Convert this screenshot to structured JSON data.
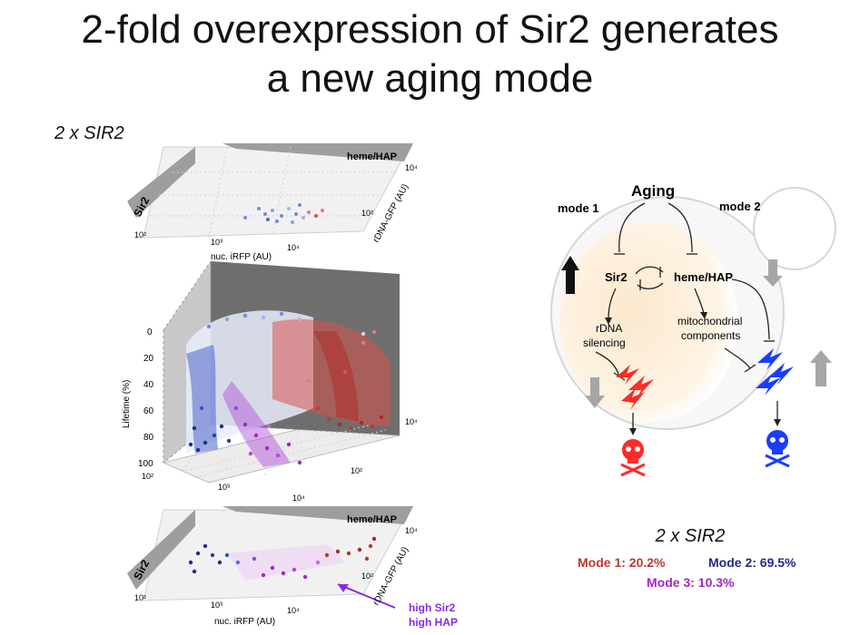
{
  "slide": {
    "title_line1": "2-fold overexpression of Sir2 generates",
    "title_line2": "a new aging mode",
    "left_label": "2 x SIR2"
  },
  "top_plot": {
    "axis_z_label": "Sir2",
    "axis_depth_label": "heme/HAP",
    "x_label": "nuc. iRFP (AU)",
    "y_label": "rDNA-GFP (AU)",
    "x_ticks": [
      "10²",
      "10³",
      "10⁴"
    ],
    "y_ticks": [
      "10²",
      "10⁴"
    ]
  },
  "main_plot": {
    "z_label": "Lifetime (%)",
    "z_ticks": [
      "0",
      "20",
      "40",
      "60",
      "80",
      "100"
    ],
    "x_ticks": [
      "10²",
      "10³",
      "10⁴"
    ],
    "y_ticks": [
      "10²",
      "10⁴"
    ]
  },
  "bottom_plot": {
    "axis_z_label": "Sir2",
    "axis_depth_label": "heme/HAP",
    "x_label": "nuc. iRFP (AU)",
    "y_label": "rDNA-GFP (AU)",
    "x_ticks": [
      "10²",
      "10³",
      "10⁴"
    ],
    "y_ticks": [
      "10²",
      "10⁴"
    ],
    "annotation_line1": "high Sir2",
    "annotation_line2": "high HAP"
  },
  "diagram": {
    "aging": "Aging",
    "mode1": "mode 1",
    "mode2": "mode 2",
    "sir2": "Sir2",
    "heme": "heme/HAP",
    "rdna_line1": "rDNA",
    "rdna_line2": "silencing",
    "mito_line1": "mitochondrial",
    "mito_line2": "components"
  },
  "stats": {
    "subtitle": "2 x SIR2",
    "mode1": "Mode 1: 20.2%",
    "mode2": "Mode 2: 69.5%",
    "mode3": "Mode 3: 10.3%"
  },
  "colors": {
    "mode1": "#c0392b",
    "mode2": "#1f2d8c",
    "mode3": "#a326c9",
    "annotation": "#8a2be2"
  }
}
